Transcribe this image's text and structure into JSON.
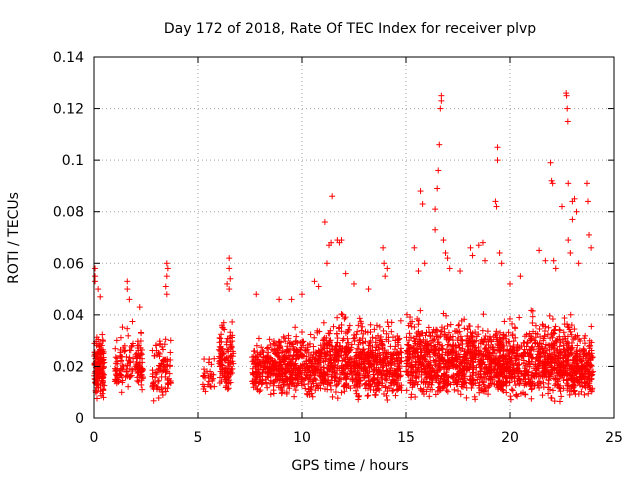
{
  "chart_data": {
    "type": "scatter",
    "title": "Day 172 of 2018, Rate Of TEC Index for receiver plvp",
    "xlabel": "GPS time / hours",
    "ylabel": "ROTI / TECUs",
    "xlim": [
      0,
      25
    ],
    "ylim": [
      0,
      0.14
    ],
    "xticks": [
      "0",
      "5",
      "10",
      "15",
      "20",
      "25"
    ],
    "yticks": [
      "0",
      "0.02",
      "0.04",
      "0.06",
      "0.08",
      "0.1",
      "0.12",
      "0.14"
    ],
    "grid": true,
    "marker": "+",
    "color": "#ff0000",
    "series": [
      {
        "name": "ROTI",
        "clusters": [
          {
            "x": [
              0.0,
              0.5
            ],
            "y": [
              0.006,
              0.04
            ],
            "n": 140
          },
          {
            "x": [
              1.0,
              1.9
            ],
            "y": [
              0.008,
              0.04
            ],
            "n": 80
          },
          {
            "x": [
              2.0,
              2.4
            ],
            "y": [
              0.008,
              0.038
            ],
            "n": 60
          },
          {
            "x": [
              2.8,
              3.7
            ],
            "y": [
              0.006,
              0.035
            ],
            "n": 90
          },
          {
            "x": [
              5.2,
              5.8
            ],
            "y": [
              0.008,
              0.028
            ],
            "n": 30
          },
          {
            "x": [
              6.0,
              6.7
            ],
            "y": [
              0.008,
              0.045
            ],
            "n": 120
          },
          {
            "x": [
              7.6,
              9.0
            ],
            "y": [
              0.008,
              0.035
            ],
            "n": 220
          },
          {
            "x": [
              9.0,
              11.0
            ],
            "y": [
              0.006,
              0.04
            ],
            "n": 340
          },
          {
            "x": [
              11.0,
              13.0
            ],
            "y": [
              0.006,
              0.045
            ],
            "n": 360
          },
          {
            "x": [
              13.0,
              14.8
            ],
            "y": [
              0.006,
              0.042
            ],
            "n": 320
          },
          {
            "x": [
              15.0,
              17.0
            ],
            "y": [
              0.006,
              0.045
            ],
            "n": 380
          },
          {
            "x": [
              17.0,
              19.0
            ],
            "y": [
              0.006,
              0.045
            ],
            "n": 380
          },
          {
            "x": [
              19.0,
              21.0
            ],
            "y": [
              0.006,
              0.042
            ],
            "n": 380
          },
          {
            "x": [
              21.0,
              23.0
            ],
            "y": [
              0.006,
              0.045
            ],
            "n": 380
          },
          {
            "x": [
              23.0,
              24.0
            ],
            "y": [
              0.006,
              0.038
            ],
            "n": 200
          }
        ],
        "outliers": [
          [
            0.05,
            0.058
          ],
          [
            0.05,
            0.055
          ],
          [
            0.05,
            0.053
          ],
          [
            0.2,
            0.05
          ],
          [
            0.3,
            0.047
          ],
          [
            1.6,
            0.053
          ],
          [
            1.6,
            0.05
          ],
          [
            1.7,
            0.046
          ],
          [
            2.2,
            0.043
          ],
          [
            3.5,
            0.06
          ],
          [
            3.55,
            0.058
          ],
          [
            3.5,
            0.055
          ],
          [
            3.45,
            0.051
          ],
          [
            3.5,
            0.048
          ],
          [
            6.5,
            0.062
          ],
          [
            6.5,
            0.058
          ],
          [
            6.55,
            0.054
          ],
          [
            6.5,
            0.05
          ],
          [
            6.4,
            0.052
          ],
          [
            7.8,
            0.048
          ],
          [
            8.9,
            0.046
          ],
          [
            9.5,
            0.046
          ],
          [
            10.0,
            0.048
          ],
          [
            10.6,
            0.053
          ],
          [
            10.8,
            0.051
          ],
          [
            11.1,
            0.076
          ],
          [
            11.3,
            0.067
          ],
          [
            11.4,
            0.068
          ],
          [
            11.45,
            0.086
          ],
          [
            11.7,
            0.069
          ],
          [
            11.8,
            0.068
          ],
          [
            11.9,
            0.069
          ],
          [
            11.2,
            0.06
          ],
          [
            12.1,
            0.056
          ],
          [
            12.5,
            0.052
          ],
          [
            13.2,
            0.05
          ],
          [
            13.9,
            0.066
          ],
          [
            13.95,
            0.06
          ],
          [
            14.0,
            0.055
          ],
          [
            14.1,
            0.058
          ],
          [
            15.4,
            0.066
          ],
          [
            15.6,
            0.057
          ],
          [
            15.7,
            0.088
          ],
          [
            15.8,
            0.083
          ],
          [
            15.9,
            0.06
          ],
          [
            16.4,
            0.073
          ],
          [
            16.4,
            0.081
          ],
          [
            16.5,
            0.089
          ],
          [
            16.55,
            0.096
          ],
          [
            16.6,
            0.106
          ],
          [
            16.65,
            0.12
          ],
          [
            16.7,
            0.123
          ],
          [
            16.7,
            0.125
          ],
          [
            16.8,
            0.069
          ],
          [
            16.9,
            0.064
          ],
          [
            17.0,
            0.062
          ],
          [
            17.1,
            0.058
          ],
          [
            17.6,
            0.057
          ],
          [
            18.1,
            0.066
          ],
          [
            18.2,
            0.063
          ],
          [
            18.5,
            0.067
          ],
          [
            18.7,
            0.068
          ],
          [
            18.8,
            0.061
          ],
          [
            19.3,
            0.084
          ],
          [
            19.35,
            0.082
          ],
          [
            19.4,
            0.1
          ],
          [
            19.4,
            0.105
          ],
          [
            19.5,
            0.064
          ],
          [
            19.6,
            0.06
          ],
          [
            20.0,
            0.052
          ],
          [
            20.5,
            0.055
          ],
          [
            21.4,
            0.065
          ],
          [
            21.7,
            0.061
          ],
          [
            21.95,
            0.099
          ],
          [
            22.0,
            0.092
          ],
          [
            22.05,
            0.091
          ],
          [
            22.1,
            0.061
          ],
          [
            22.2,
            0.058
          ],
          [
            22.5,
            0.082
          ],
          [
            22.7,
            0.126
          ],
          [
            22.72,
            0.125
          ],
          [
            22.75,
            0.12
          ],
          [
            22.78,
            0.115
          ],
          [
            22.8,
            0.091
          ],
          [
            22.8,
            0.069
          ],
          [
            22.9,
            0.064
          ],
          [
            23.0,
            0.077
          ],
          [
            23.0,
            0.084
          ],
          [
            23.1,
            0.085
          ],
          [
            23.2,
            0.08
          ],
          [
            23.3,
            0.06
          ],
          [
            23.7,
            0.091
          ],
          [
            23.75,
            0.084
          ],
          [
            23.8,
            0.071
          ],
          [
            23.9,
            0.066
          ]
        ]
      }
    ]
  }
}
